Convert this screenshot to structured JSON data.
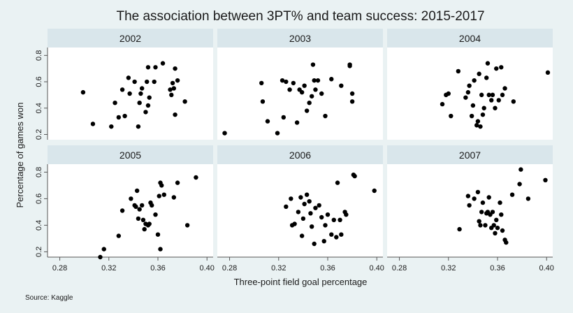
{
  "chart_data": {
    "type": "scatter",
    "title": "The association between 3PT% and team success: 2015-2017",
    "xlabel": "Three-point field goal percentage",
    "ylabel": "Percentage of games won",
    "source_note": "Source: Kaggle",
    "xlim": [
      0.27,
      0.405
    ],
    "ylim": [
      0.16,
      0.86
    ],
    "x_ticks": [
      0.28,
      0.32,
      0.36,
      0.4
    ],
    "x_tick_labels": [
      "0.28",
      "0.32",
      "0.36",
      "0.40"
    ],
    "y_ticks": [
      0.2,
      0.4,
      0.6,
      0.8
    ],
    "y_tick_labels": [
      "0.2",
      "0.4",
      "0.6",
      "0.8"
    ],
    "grid": false,
    "colors": {
      "background": "#eaf2f3",
      "panel": "#ffffff",
      "strip": "#d9e6eb",
      "marker": "#000000"
    },
    "panels": [
      {
        "label": "2002",
        "points": [
          [
            0.299,
            0.52
          ],
          [
            0.307,
            0.28
          ],
          [
            0.322,
            0.26
          ],
          [
            0.325,
            0.44
          ],
          [
            0.328,
            0.33
          ],
          [
            0.331,
            0.54
          ],
          [
            0.333,
            0.34
          ],
          [
            0.336,
            0.63
          ],
          [
            0.337,
            0.51
          ],
          [
            0.341,
            0.6
          ],
          [
            0.344,
            0.26
          ],
          [
            0.345,
            0.44
          ],
          [
            0.346,
            0.51
          ],
          [
            0.347,
            0.55
          ],
          [
            0.35,
            0.37
          ],
          [
            0.351,
            0.6
          ],
          [
            0.352,
            0.42
          ],
          [
            0.353,
            0.48
          ],
          [
            0.352,
            0.71
          ],
          [
            0.357,
            0.6
          ],
          [
            0.358,
            0.71
          ],
          [
            0.364,
            0.74
          ],
          [
            0.37,
            0.54
          ],
          [
            0.371,
            0.5
          ],
          [
            0.372,
            0.59
          ],
          [
            0.373,
            0.55
          ],
          [
            0.374,
            0.7
          ],
          [
            0.374,
            0.35
          ],
          [
            0.376,
            0.61
          ],
          [
            0.382,
            0.45
          ]
        ]
      },
      {
        "label": "2003",
        "points": [
          [
            0.276,
            0.21
          ],
          [
            0.306,
            0.59
          ],
          [
            0.307,
            0.45
          ],
          [
            0.311,
            0.3
          ],
          [
            0.319,
            0.21
          ],
          [
            0.323,
            0.61
          ],
          [
            0.324,
            0.33
          ],
          [
            0.326,
            0.6
          ],
          [
            0.329,
            0.54
          ],
          [
            0.332,
            0.59
          ],
          [
            0.335,
            0.29
          ],
          [
            0.337,
            0.54
          ],
          [
            0.339,
            0.52
          ],
          [
            0.341,
            0.57
          ],
          [
            0.343,
            0.38
          ],
          [
            0.345,
            0.44
          ],
          [
            0.347,
            0.49
          ],
          [
            0.348,
            0.73
          ],
          [
            0.349,
            0.61
          ],
          [
            0.35,
            0.54
          ],
          [
            0.352,
            0.61
          ],
          [
            0.355,
            0.51
          ],
          [
            0.358,
            0.34
          ],
          [
            0.363,
            0.62
          ],
          [
            0.371,
            0.57
          ],
          [
            0.378,
            0.72
          ],
          [
            0.378,
            0.73
          ],
          [
            0.38,
            0.51
          ],
          [
            0.38,
            0.45
          ]
        ]
      },
      {
        "label": "2004",
        "points": [
          [
            0.315,
            0.43
          ],
          [
            0.318,
            0.5
          ],
          [
            0.32,
            0.51
          ],
          [
            0.322,
            0.34
          ],
          [
            0.328,
            0.68
          ],
          [
            0.334,
            0.48
          ],
          [
            0.336,
            0.52
          ],
          [
            0.337,
            0.57
          ],
          [
            0.339,
            0.34
          ],
          [
            0.34,
            0.42
          ],
          [
            0.341,
            0.61
          ],
          [
            0.343,
            0.27
          ],
          [
            0.344,
            0.3
          ],
          [
            0.345,
            0.66
          ],
          [
            0.346,
            0.26
          ],
          [
            0.347,
            0.5
          ],
          [
            0.348,
            0.35
          ],
          [
            0.349,
            0.4
          ],
          [
            0.351,
            0.63
          ],
          [
            0.352,
            0.74
          ],
          [
            0.353,
            0.5
          ],
          [
            0.355,
            0.46
          ],
          [
            0.356,
            0.5
          ],
          [
            0.358,
            0.4
          ],
          [
            0.359,
            0.7
          ],
          [
            0.361,
            0.46
          ],
          [
            0.363,
            0.71
          ],
          [
            0.364,
            0.5
          ],
          [
            0.366,
            0.55
          ],
          [
            0.373,
            0.45
          ],
          [
            0.401,
            0.67
          ]
        ]
      },
      {
        "label": "2005",
        "points": [
          [
            0.313,
            0.16
          ],
          [
            0.316,
            0.22
          ],
          [
            0.328,
            0.32
          ],
          [
            0.331,
            0.51
          ],
          [
            0.338,
            0.6
          ],
          [
            0.341,
            0.55
          ],
          [
            0.342,
            0.54
          ],
          [
            0.343,
            0.66
          ],
          [
            0.344,
            0.45
          ],
          [
            0.345,
            0.52
          ],
          [
            0.347,
            0.55
          ],
          [
            0.348,
            0.44
          ],
          [
            0.349,
            0.37
          ],
          [
            0.35,
            0.41
          ],
          [
            0.352,
            0.4
          ],
          [
            0.353,
            0.41
          ],
          [
            0.354,
            0.57
          ],
          [
            0.355,
            0.55
          ],
          [
            0.358,
            0.48
          ],
          [
            0.36,
            0.33
          ],
          [
            0.361,
            0.62
          ],
          [
            0.362,
            0.72
          ],
          [
            0.363,
            0.7
          ],
          [
            0.362,
            0.22
          ],
          [
            0.365,
            0.63
          ],
          [
            0.373,
            0.61
          ],
          [
            0.376,
            0.72
          ],
          [
            0.384,
            0.4
          ],
          [
            0.391,
            0.76
          ]
        ]
      },
      {
        "label": "2006",
        "points": [
          [
            0.326,
            0.54
          ],
          [
            0.33,
            0.6
          ],
          [
            0.331,
            0.4
          ],
          [
            0.333,
            0.41
          ],
          [
            0.336,
            0.5
          ],
          [
            0.338,
            0.61
          ],
          [
            0.339,
            0.32
          ],
          [
            0.34,
            0.45
          ],
          [
            0.341,
            0.56
          ],
          [
            0.343,
            0.63
          ],
          [
            0.345,
            0.58
          ],
          [
            0.346,
            0.49
          ],
          [
            0.347,
            0.39
          ],
          [
            0.349,
            0.26
          ],
          [
            0.35,
            0.53
          ],
          [
            0.353,
            0.55
          ],
          [
            0.355,
            0.46
          ],
          [
            0.357,
            0.28
          ],
          [
            0.358,
            0.4
          ],
          [
            0.36,
            0.48
          ],
          [
            0.363,
            0.33
          ],
          [
            0.365,
            0.44
          ],
          [
            0.367,
            0.31
          ],
          [
            0.368,
            0.72
          ],
          [
            0.37,
            0.44
          ],
          [
            0.371,
            0.33
          ],
          [
            0.374,
            0.5
          ],
          [
            0.375,
            0.48
          ],
          [
            0.381,
            0.78
          ],
          [
            0.382,
            0.77
          ],
          [
            0.398,
            0.66
          ]
        ]
      },
      {
        "label": "2007",
        "points": [
          [
            0.329,
            0.37
          ],
          [
            0.336,
            0.62
          ],
          [
            0.337,
            0.55
          ],
          [
            0.341,
            0.6
          ],
          [
            0.344,
            0.65
          ],
          [
            0.345,
            0.43
          ],
          [
            0.346,
            0.4
          ],
          [
            0.347,
            0.5
          ],
          [
            0.348,
            0.57
          ],
          [
            0.35,
            0.4
          ],
          [
            0.351,
            0.49
          ],
          [
            0.352,
            0.5
          ],
          [
            0.353,
            0.61
          ],
          [
            0.354,
            0.48
          ],
          [
            0.355,
            0.38
          ],
          [
            0.356,
            0.5
          ],
          [
            0.357,
            0.4
          ],
          [
            0.358,
            0.34
          ],
          [
            0.359,
            0.44
          ],
          [
            0.36,
            0.38
          ],
          [
            0.362,
            0.57
          ],
          [
            0.363,
            0.48
          ],
          [
            0.364,
            0.36
          ],
          [
            0.366,
            0.29
          ],
          [
            0.367,
            0.27
          ],
          [
            0.372,
            0.63
          ],
          [
            0.378,
            0.71
          ],
          [
            0.379,
            0.82
          ],
          [
            0.385,
            0.6
          ],
          [
            0.399,
            0.74
          ]
        ]
      }
    ]
  }
}
